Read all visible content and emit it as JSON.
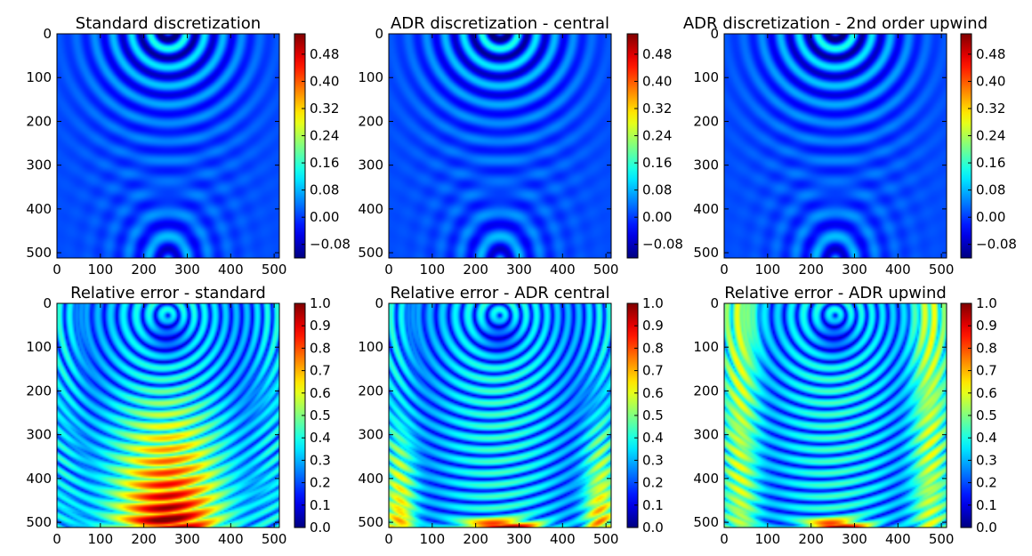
{
  "chart_data": [
    {
      "type": "heatmap",
      "title": "Standard discretization",
      "xlabel": "",
      "ylabel": "",
      "xlim": [
        0,
        512
      ],
      "ylim": [
        512,
        0
      ],
      "xticks": [
        "0",
        "100",
        "200",
        "300",
        "400",
        "500"
      ],
      "yticks": [
        "0",
        "100",
        "200",
        "300",
        "400",
        "500"
      ],
      "colormap": "jet",
      "colorbar": {
        "range": [
          -0.12,
          0.54
        ],
        "ticks": [
          "−0.08",
          "0.00",
          "0.08",
          "0.16",
          "0.24",
          "0.32",
          "0.40",
          "0.48"
        ],
        "tick_values": [
          -0.08,
          0.0,
          0.08,
          0.16,
          0.24,
          0.32,
          0.4,
          0.48
        ]
      },
      "field": "wavefield"
    },
    {
      "type": "heatmap",
      "title": "ADR discretization - central",
      "xlabel": "",
      "ylabel": "",
      "xlim": [
        0,
        512
      ],
      "ylim": [
        512,
        0
      ],
      "xticks": [
        "0",
        "100",
        "200",
        "300",
        "400",
        "500"
      ],
      "yticks": [
        "0",
        "100",
        "200",
        "300",
        "400",
        "500"
      ],
      "colormap": "jet",
      "colorbar": {
        "range": [
          -0.12,
          0.54
        ],
        "ticks": [
          "−0.08",
          "0.00",
          "0.08",
          "0.16",
          "0.24",
          "0.32",
          "0.40",
          "0.48"
        ],
        "tick_values": [
          -0.08,
          0.0,
          0.08,
          0.16,
          0.24,
          0.32,
          0.4,
          0.48
        ]
      },
      "field": "wavefield"
    },
    {
      "type": "heatmap",
      "title": "ADR discretization - 2nd order upwind",
      "xlabel": "",
      "ylabel": "",
      "xlim": [
        0,
        512
      ],
      "ylim": [
        512,
        0
      ],
      "xticks": [
        "0",
        "100",
        "200",
        "300",
        "400",
        "500"
      ],
      "yticks": [
        "0",
        "100",
        "200",
        "300",
        "400",
        "500"
      ],
      "colormap": "jet",
      "colorbar": {
        "range": [
          -0.12,
          0.54
        ],
        "ticks": [
          "−0.08",
          "0.00",
          "0.08",
          "0.16",
          "0.24",
          "0.32",
          "0.40",
          "0.48"
        ],
        "tick_values": [
          -0.08,
          0.0,
          0.08,
          0.16,
          0.24,
          0.32,
          0.4,
          0.48
        ]
      },
      "field": "wavefield"
    },
    {
      "type": "heatmap",
      "title": "Relative error - standard",
      "xlabel": "",
      "ylabel": "",
      "xlim": [
        0,
        512
      ],
      "ylim": [
        512,
        0
      ],
      "xticks": [
        "0",
        "100",
        "200",
        "300",
        "400",
        "500"
      ],
      "yticks": [
        "0",
        "100",
        "200",
        "300",
        "400",
        "500"
      ],
      "colormap": "jet",
      "colorbar": {
        "range": [
          0.0,
          1.0
        ],
        "ticks": [
          "0.0",
          "0.1",
          "0.2",
          "0.3",
          "0.4",
          "0.5",
          "0.6",
          "0.7",
          "0.8",
          "0.9",
          "1.0"
        ],
        "tick_values": [
          0.0,
          0.1,
          0.2,
          0.3,
          0.4,
          0.5,
          0.6,
          0.7,
          0.8,
          0.9,
          1.0
        ]
      },
      "field": "error"
    },
    {
      "type": "heatmap",
      "title": "Relative error - ADR central",
      "xlabel": "",
      "ylabel": "",
      "xlim": [
        0,
        512
      ],
      "ylim": [
        512,
        0
      ],
      "xticks": [
        "0",
        "100",
        "200",
        "300",
        "400",
        "500"
      ],
      "yticks": [
        "0",
        "100",
        "200",
        "300",
        "400",
        "500"
      ],
      "colormap": "jet",
      "colorbar": {
        "range": [
          0.0,
          1.0
        ],
        "ticks": [
          "0.0",
          "0.1",
          "0.2",
          "0.3",
          "0.4",
          "0.5",
          "0.6",
          "0.7",
          "0.8",
          "0.9",
          "1.0"
        ],
        "tick_values": [
          0.0,
          0.1,
          0.2,
          0.3,
          0.4,
          0.5,
          0.6,
          0.7,
          0.8,
          0.9,
          1.0
        ]
      },
      "field": "error"
    },
    {
      "type": "heatmap",
      "title": "Relative error - ADR upwind",
      "xlabel": "",
      "ylabel": "",
      "xlim": [
        0,
        512
      ],
      "ylim": [
        512,
        0
      ],
      "xticks": [
        "0",
        "100",
        "200",
        "300",
        "400",
        "500"
      ],
      "yticks": [
        "0",
        "100",
        "200",
        "300",
        "400",
        "500"
      ],
      "colormap": "jet",
      "colorbar": {
        "range": [
          0.0,
          1.0
        ],
        "ticks": [
          "0.0",
          "0.1",
          "0.2",
          "0.3",
          "0.4",
          "0.5",
          "0.6",
          "0.7",
          "0.8",
          "0.9",
          "1.0"
        ],
        "tick_values": [
          0.0,
          0.1,
          0.2,
          0.3,
          0.4,
          0.5,
          0.6,
          0.7,
          0.8,
          0.9,
          1.0
        ]
      },
      "field": "error"
    }
  ]
}
